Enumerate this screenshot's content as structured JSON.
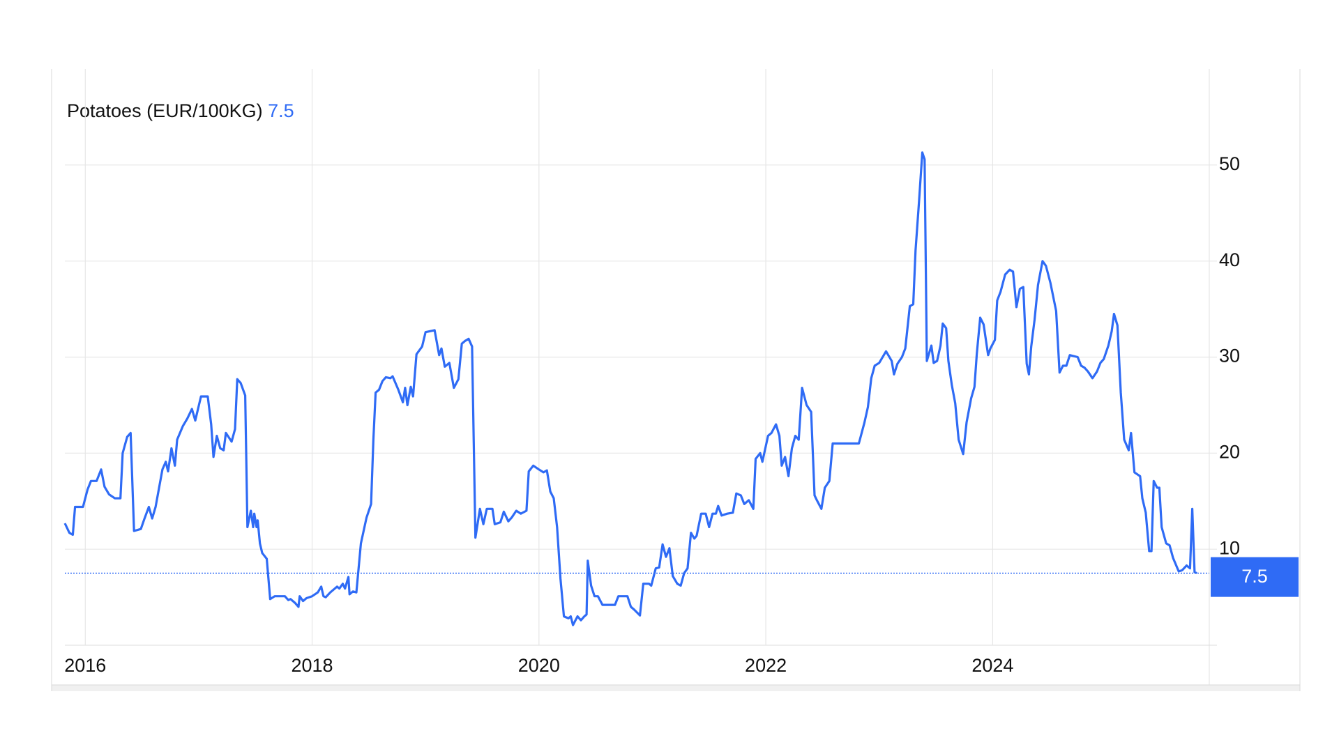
{
  "chart_data": {
    "type": "line",
    "title": "Potatoes (EUR/100KG)",
    "current_value": 7.5,
    "color": "#2f6bf5",
    "grid": true,
    "xlim": [
      2015.82,
      2025.91
    ],
    "xticks": [
      2016,
      2018,
      2020,
      2022,
      2024
    ],
    "ylim": [
      0,
      60
    ],
    "yticks": [
      10,
      20,
      30,
      40,
      50
    ],
    "x": [
      2015.82,
      2015.86,
      2015.89,
      2015.91,
      2015.98,
      2016.02,
      2016.05,
      2016.1,
      2016.14,
      2016.17,
      2016.21,
      2016.26,
      2016.31,
      2016.33,
      2016.37,
      2016.4,
      2016.43,
      2016.49,
      2016.52,
      2016.56,
      2016.59,
      2016.62,
      2016.68,
      2016.71,
      2016.73,
      2016.76,
      2016.79,
      2016.81,
      2016.86,
      2016.9,
      2016.94,
      2016.97,
      2017.02,
      2017.08,
      2017.11,
      2017.13,
      2017.16,
      2017.19,
      2017.22,
      2017.24,
      2017.29,
      2017.32,
      2017.34,
      2017.37,
      2017.41,
      2017.43,
      2017.46,
      2017.48,
      2017.49,
      2017.51,
      2017.52,
      2017.54,
      2017.56,
      2017.6,
      2017.63,
      2017.67,
      2017.76,
      2017.79,
      2017.81,
      2017.85,
      2017.88,
      2017.89,
      2017.92,
      2017.95,
      2018.0,
      2018.05,
      2018.08,
      2018.1,
      2018.12,
      2018.16,
      2018.2,
      2018.22,
      2018.24,
      2018.27,
      2018.29,
      2018.32,
      2018.33,
      2018.36,
      2018.39,
      2018.41,
      2018.43,
      2018.48,
      2018.52,
      2018.54,
      2018.56,
      2018.59,
      2018.62,
      2018.65,
      2018.69,
      2018.71,
      2018.76,
      2018.8,
      2018.82,
      2018.84,
      2018.87,
      2018.89,
      2018.92,
      2018.97,
      2019.0,
      2019.08,
      2019.12,
      2019.14,
      2019.17,
      2019.21,
      2019.25,
      2019.29,
      2019.32,
      2019.35,
      2019.38,
      2019.41,
      2019.44,
      2019.48,
      2019.51,
      2019.54,
      2019.59,
      2019.61,
      2019.66,
      2019.69,
      2019.73,
      2019.76,
      2019.8,
      2019.84,
      2019.89,
      2019.91,
      2019.95,
      2020.0,
      2020.04,
      2020.07,
      2020.1,
      2020.13,
      2020.16,
      2020.19,
      2020.22,
      2020.26,
      2020.28,
      2020.3,
      2020.34,
      2020.37,
      2020.4,
      2020.42,
      2020.43,
      2020.46,
      2020.49,
      2020.52,
      2020.56,
      2020.67,
      2020.7,
      2020.78,
      2020.81,
      2020.84,
      2020.89,
      2020.92,
      2020.97,
      2020.99,
      2021.03,
      2021.06,
      2021.09,
      2021.12,
      2021.15,
      2021.18,
      2021.22,
      2021.25,
      2021.28,
      2021.31,
      2021.34,
      2021.37,
      2021.39,
      2021.43,
      2021.47,
      2021.5,
      2021.53,
      2021.56,
      2021.58,
      2021.61,
      2021.66,
      2021.71,
      2021.74,
      2021.78,
      2021.81,
      2021.85,
      2021.89,
      2021.91,
      2021.95,
      2021.97,
      2022.02,
      2022.05,
      2022.09,
      2022.12,
      2022.14,
      2022.17,
      2022.2,
      2022.23,
      2022.26,
      2022.29,
      2022.32,
      2022.36,
      2022.4,
      2022.43,
      2022.45,
      2022.49,
      2022.52,
      2022.56,
      2022.59,
      2022.82,
      2022.87,
      2022.9,
      2022.93,
      2022.96,
      2023.0,
      2023.06,
      2023.11,
      2023.13,
      2023.16,
      2023.2,
      2023.23,
      2023.27,
      2023.3,
      2023.32,
      2023.35,
      2023.38,
      2023.4,
      2023.42,
      2023.46,
      2023.48,
      2023.51,
      2023.54,
      2023.56,
      2023.59,
      2023.61,
      2023.64,
      2023.67,
      2023.7,
      2023.74,
      2023.77,
      2023.81,
      2023.84,
      2023.86,
      2023.89,
      2023.92,
      2023.96,
      2023.98,
      2024.02,
      2024.04,
      2024.07,
      2024.11,
      2024.15,
      2024.18,
      2024.21,
      2024.24,
      2024.27,
      2024.3,
      2024.32,
      2024.34,
      2024.37,
      2024.4,
      2024.44,
      2024.47,
      2024.51,
      2024.56,
      2024.59,
      2024.62,
      2024.65,
      2024.68,
      2024.75,
      2024.78,
      2024.81,
      2024.84,
      2024.88,
      2024.92,
      2024.95,
      2024.98,
      2025.02,
      2025.05,
      2025.07,
      2025.1,
      2025.13,
      2025.16,
      2025.2,
      2025.22,
      2025.25,
      2025.3,
      2025.32,
      2025.35,
      2025.38,
      2025.4,
      2025.42,
      2025.45,
      2025.47,
      2025.49,
      2025.53,
      2025.56,
      2025.59,
      2025.64,
      2025.67,
      2025.71,
      2025.74,
      2025.76,
      2025.78,
      2025.8
    ],
    "values": [
      12.7,
      11.7,
      11.5,
      14.4,
      14.4,
      16.2,
      17.1,
      17.1,
      18.3,
      16.5,
      15.7,
      15.3,
      15.3,
      20.0,
      21.7,
      22.1,
      11.9,
      12.1,
      13.1,
      14.4,
      13.2,
      14.4,
      18.3,
      19.1,
      18.1,
      20.5,
      18.7,
      21.4,
      22.8,
      23.6,
      24.6,
      23.4,
      25.9,
      25.9,
      23.0,
      19.6,
      21.8,
      20.5,
      20.3,
      22.1,
      21.2,
      22.5,
      27.7,
      27.3,
      26.0,
      12.3,
      14.0,
      12.3,
      13.7,
      12.3,
      13.0,
      10.6,
      9.6,
      9.0,
      4.8,
      5.1,
      5.1,
      4.7,
      4.8,
      4.4,
      4.0,
      5.1,
      4.6,
      4.9,
      5.1,
      5.5,
      6.1,
      5.1,
      5.0,
      5.5,
      5.9,
      6.1,
      5.9,
      6.4,
      5.9,
      7.1,
      5.3,
      5.6,
      5.5,
      8.0,
      10.6,
      13.3,
      14.7,
      21.4,
      26.3,
      26.6,
      27.5,
      27.9,
      27.8,
      28.0,
      26.6,
      25.3,
      26.8,
      25.0,
      26.9,
      25.9,
      30.3,
      31.1,
      32.6,
      32.8,
      30.2,
      30.9,
      29.0,
      29.4,
      26.8,
      27.7,
      31.4,
      31.7,
      31.9,
      31.1,
      11.2,
      14.2,
      12.6,
      14.2,
      14.2,
      12.6,
      12.8,
      13.9,
      12.9,
      13.3,
      14.0,
      13.7,
      14.0,
      18.1,
      18.7,
      18.3,
      18.0,
      18.2,
      16.0,
      15.3,
      12.3,
      6.9,
      3.0,
      2.8,
      3.0,
      2.1,
      3.0,
      2.6,
      3.0,
      3.2,
      8.8,
      6.2,
      5.1,
      5.1,
      4.2,
      4.2,
      5.1,
      5.1,
      4.0,
      3.7,
      3.1,
      6.4,
      6.4,
      6.2,
      8.0,
      8.1,
      10.5,
      9.2,
      10.1,
      7.2,
      6.4,
      6.2,
      7.5,
      8.0,
      11.7,
      11.1,
      11.4,
      13.7,
      13.7,
      12.3,
      13.7,
      13.7,
      14.5,
      13.5,
      13.7,
      13.8,
      15.8,
      15.6,
      14.7,
      15.1,
      14.2,
      19.4,
      20.0,
      19.1,
      21.8,
      22.1,
      23.0,
      21.8,
      18.7,
      19.6,
      17.6,
      20.5,
      21.8,
      21.4,
      26.8,
      25.0,
      24.3,
      15.6,
      15.1,
      14.2,
      16.4,
      17.1,
      21.0,
      21.0,
      23.2,
      24.8,
      27.8,
      29.1,
      29.4,
      30.6,
      29.6,
      28.2,
      29.3,
      30.0,
      30.9,
      35.3,
      35.5,
      41.1,
      46.1,
      51.3,
      50.6,
      29.6,
      31.2,
      29.4,
      29.6,
      31.2,
      33.5,
      33.0,
      29.6,
      27.1,
      25.2,
      21.4,
      19.9,
      23.2,
      25.7,
      26.9,
      30.3,
      34.1,
      33.4,
      30.2,
      30.9,
      31.8,
      35.9,
      36.8,
      38.6,
      39.1,
      38.9,
      35.2,
      37.1,
      37.3,
      29.3,
      28.2,
      31.1,
      33.9,
      37.5,
      40.0,
      39.5,
      37.7,
      34.8,
      28.4,
      29.1,
      29.1,
      30.2,
      30.0,
      29.1,
      28.9,
      28.5,
      27.8,
      28.5,
      29.4,
      29.8,
      31.2,
      32.7,
      34.5,
      33.3,
      26.3,
      21.4,
      20.3,
      22.1,
      18.0,
      17.6,
      15.3,
      13.8,
      9.8,
      9.8,
      17.1,
      16.4,
      16.4,
      12.3,
      10.6,
      10.4,
      9.1,
      7.7,
      7.8,
      8.3,
      8.0,
      14.2,
      7.6,
      7.5
    ]
  }
}
